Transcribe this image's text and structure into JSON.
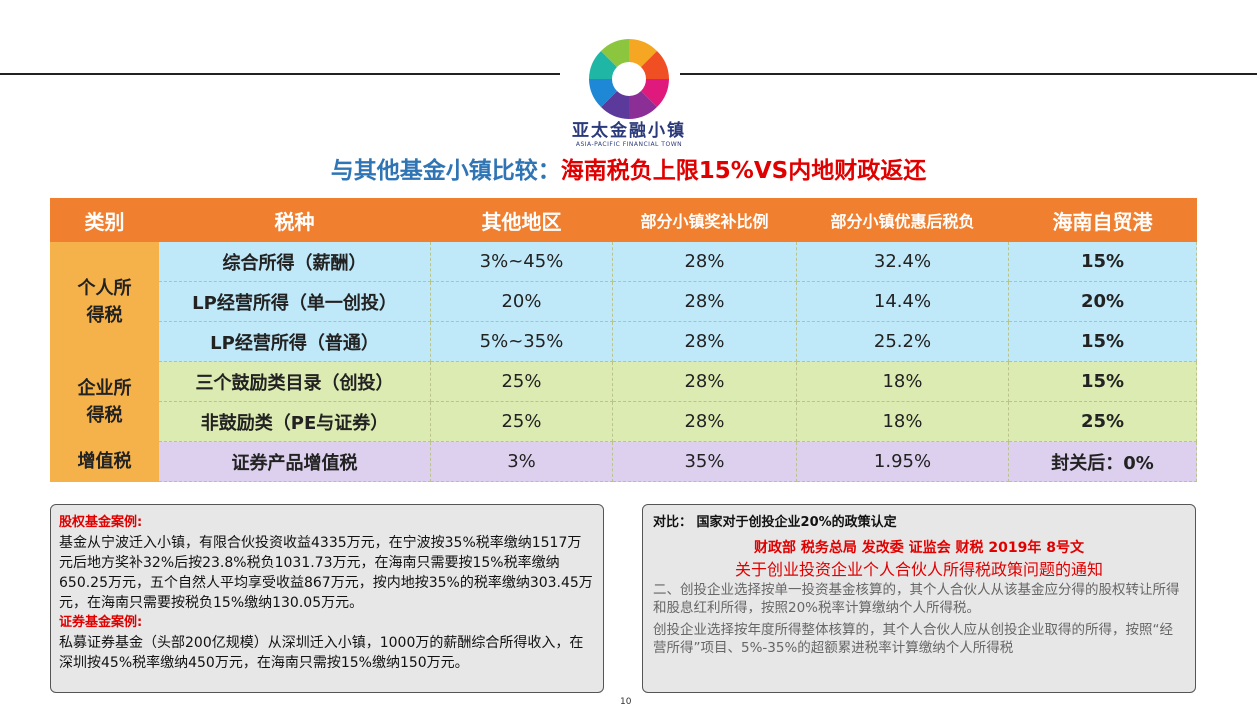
{
  "header": {
    "brand_cn": "亚太金融小镇",
    "brand_en": "ASIA-PACIFIC FINANCIAL TOWN",
    "title_part1": "与其他基金小镇比较：",
    "title_part2": "海南税负上限15%VS内地财政返还",
    "title_color1": "#2f75b5",
    "title_color2": "#e00000"
  },
  "table": {
    "headers": [
      "类别",
      "税种",
      "其他地区",
      "部分小镇奖补比例",
      "部分小镇优惠后税负",
      "海南自贸港"
    ],
    "groups": [
      {
        "category": "个人所得税"
      },
      {
        "category": "企业所得税"
      },
      {
        "category": "增值税"
      }
    ],
    "rows": [
      {
        "tax": "综合所得（薪酬）",
        "other": "3%~45%",
        "subsidy": "28%",
        "after": "32.4%",
        "hainan": "15%"
      },
      {
        "tax": "LP经营所得（单一创投）",
        "other": "20%",
        "subsidy": "28%",
        "after": "14.4%",
        "hainan": "20%"
      },
      {
        "tax": "LP经营所得（普通）",
        "other": "5%~35%",
        "subsidy": "28%",
        "after": "25.2%",
        "hainan": "15%"
      },
      {
        "tax": "三个鼓励类目录（创投）",
        "other": "25%",
        "subsidy": "28%",
        "after": "18%",
        "hainan": "15%"
      },
      {
        "tax": "非鼓励类（PE与证券）",
        "other": "25%",
        "subsidy": "28%",
        "after": "18%",
        "hainan": "25%"
      },
      {
        "tax": "证券产品增值税",
        "other": "3%",
        "subsidy": "35%",
        "after": "1.95%",
        "hainan": "封关后：0%"
      }
    ]
  },
  "left_box": {
    "case1_title": "股权基金案例:",
    "case1_text": "基金从宁波迁入小镇，有限合伙投资收益4335万元，在宁波按35%税率缴纳1517万元后地方奖补32%后按23.8%税负1031.73万元，在海南只需要按15%税率缴纳650.25万元，五个自然人平均享受收益867万元，按内地按35%的税率缴纳303.45万元，在海南只需要按税负15%缴纳130.05万元。",
    "case2_title": "证券基金案例:",
    "case2_text": "私募证券基金（头部200亿规模）从深圳迁入小镇，1000万的薪酬综合所得收入，在深圳按45%税率缴纳450万元，在海南只需按15%缴纳150万元。"
  },
  "right_box": {
    "heading": "对比： 国家对于创投企业20%的政策认定",
    "issuer": "财政部 税务总局 发改委  证监会   财税 2019年 8号文",
    "notice_title": "关于创业投资企业个人合伙人所得税政策问题的通知",
    "para1": "二、创投企业选择按单一投资基金核算的，其个人合伙人从该基金应分得的股权转让所得和股息红利所得，按照20%税率计算缴纳个人所得税。",
    "para2": "创投企业选择按年度所得整体核算的，其个人合伙人应从创投企业取得的所得，按照“经营所得”项目、5%-35%的超额累进税率计算缴纳个人所得税"
  },
  "footer": {
    "page_number": "10"
  },
  "colors": {
    "header_orange": "#f08030",
    "category_orange": "#f6b24a",
    "row_blue": "#bfe8f8",
    "row_green": "#dcebb2",
    "row_purple": "#ddd0ee",
    "accent_red": "#e00000"
  }
}
